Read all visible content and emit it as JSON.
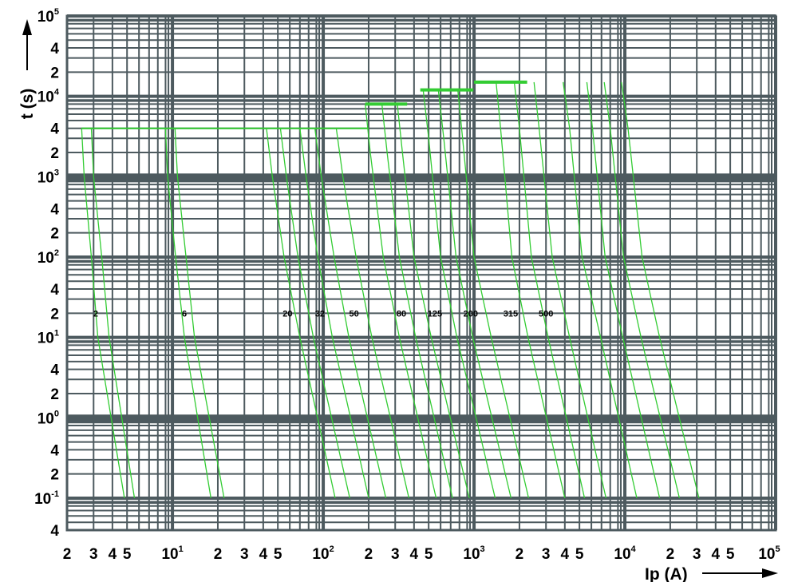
{
  "chart_data": {
    "type": "line",
    "title": "",
    "x_scale": "log",
    "y_scale": "log",
    "xlim": [
      2,
      100000
    ],
    "ylim": [
      0.04,
      100000
    ],
    "grid": true,
    "xlabel": "Ip (A)",
    "ylabel": "t (s)",
    "x_tick_labels": [
      {
        "value": 2,
        "base": "2",
        "sup": ""
      },
      {
        "value": 3,
        "base": "3",
        "sup": ""
      },
      {
        "value": 4,
        "base": "4",
        "sup": ""
      },
      {
        "value": 5,
        "base": "5",
        "sup": ""
      },
      {
        "value": 10,
        "base": "10",
        "sup": "1"
      },
      {
        "value": 20,
        "base": "2",
        "sup": ""
      },
      {
        "value": 30,
        "base": "3",
        "sup": ""
      },
      {
        "value": 40,
        "base": "4",
        "sup": ""
      },
      {
        "value": 50,
        "base": "5",
        "sup": ""
      },
      {
        "value": 100,
        "base": "10",
        "sup": "2"
      },
      {
        "value": 200,
        "base": "2",
        "sup": ""
      },
      {
        "value": 300,
        "base": "3",
        "sup": ""
      },
      {
        "value": 400,
        "base": "4",
        "sup": ""
      },
      {
        "value": 500,
        "base": "5",
        "sup": ""
      },
      {
        "value": 1000,
        "base": "10",
        "sup": "3"
      },
      {
        "value": 2000,
        "base": "2",
        "sup": ""
      },
      {
        "value": 3000,
        "base": "3",
        "sup": ""
      },
      {
        "value": 4000,
        "base": "4",
        "sup": ""
      },
      {
        "value": 5000,
        "base": "5",
        "sup": ""
      },
      {
        "value": 10000,
        "base": "10",
        "sup": "4"
      },
      {
        "value": 20000,
        "base": "2",
        "sup": ""
      },
      {
        "value": 30000,
        "base": "3",
        "sup": ""
      },
      {
        "value": 40000,
        "base": "4",
        "sup": ""
      },
      {
        "value": 50000,
        "base": "5",
        "sup": ""
      },
      {
        "value": 100000,
        "base": "10",
        "sup": "5"
      }
    ],
    "y_tick_labels": [
      {
        "value": 100000,
        "base": "10",
        "sup": "5"
      },
      {
        "value": 40000,
        "base": "4",
        "sup": ""
      },
      {
        "value": 20000,
        "base": "2",
        "sup": ""
      },
      {
        "value": 10000,
        "base": "10",
        "sup": "4"
      },
      {
        "value": 4000,
        "base": "4",
        "sup": ""
      },
      {
        "value": 2000,
        "base": "2",
        "sup": ""
      },
      {
        "value": 1000,
        "base": "10",
        "sup": "3"
      },
      {
        "value": 400,
        "base": "4",
        "sup": ""
      },
      {
        "value": 200,
        "base": "2",
        "sup": ""
      },
      {
        "value": 100,
        "base": "10",
        "sup": "2"
      },
      {
        "value": 40,
        "base": "4",
        "sup": ""
      },
      {
        "value": 20,
        "base": "2",
        "sup": ""
      },
      {
        "value": 10,
        "base": "10",
        "sup": "1"
      },
      {
        "value": 4,
        "base": "4",
        "sup": ""
      },
      {
        "value": 2,
        "base": "2",
        "sup": ""
      },
      {
        "value": 1,
        "base": "10",
        "sup": "0"
      },
      {
        "value": 0.4,
        "base": "4",
        "sup": ""
      },
      {
        "value": 0.2,
        "base": "2",
        "sup": ""
      },
      {
        "value": 0.1,
        "base": "10",
        "sup": "-1"
      },
      {
        "value": 0.04,
        "base": "4",
        "sup": ""
      }
    ],
    "series": [
      {
        "name": "2",
        "x": [
          2.5,
          2.6,
          2.9,
          3.2,
          4.8
        ],
        "y": [
          4000,
          1000,
          100,
          10,
          0.1
        ]
      },
      {
        "name": "",
        "x": [
          2.9,
          3.0,
          3.4,
          3.8,
          5.6
        ],
        "y": [
          4000,
          1000,
          100,
          10,
          0.1
        ]
      },
      {
        "name": "6",
        "x": [
          9.0,
          9.3,
          10.5,
          12.0,
          18.0
        ],
        "y": [
          4000,
          1000,
          100,
          10,
          0.1
        ]
      },
      {
        "name": "",
        "x": [
          10.4,
          10.8,
          12.3,
          14.0,
          22.0
        ],
        "y": [
          4000,
          1000,
          100,
          10,
          0.1
        ]
      },
      {
        "name": "20",
        "x": [
          42,
          46,
          55,
          70,
          120
        ],
        "y": [
          4000,
          1000,
          100,
          10,
          0.1
        ]
      },
      {
        "name": "",
        "x": [
          52,
          57,
          68,
          86,
          150
        ],
        "y": [
          4000,
          1000,
          100,
          10,
          0.1
        ]
      },
      {
        "name": "32",
        "x": [
          70,
          77,
          92,
          115,
          200
        ],
        "y": [
          4000,
          1000,
          100,
          10,
          0.1
        ]
      },
      {
        "name": "",
        "x": [
          88,
          97,
          118,
          148,
          260
        ],
        "y": [
          4000,
          1000,
          100,
          10,
          0.1
        ]
      },
      {
        "name": "50",
        "x": [
          122,
          135,
          165,
          210,
          370
        ],
        "y": [
          4000,
          1000,
          100,
          10,
          0.1
        ]
      },
      {
        "name": "",
        "x": [
          190,
          205,
          250,
          320,
          560
        ],
        "y": [
          8000,
          2000,
          100,
          10,
          0.1
        ]
      },
      {
        "name": "80",
        "x": [
          245,
          265,
          320,
          410,
          720
        ],
        "y": [
          8000,
          2000,
          100,
          10,
          0.1
        ]
      },
      {
        "name": "",
        "x": [
          310,
          335,
          400,
          520,
          930
        ],
        "y": [
          8000,
          2000,
          100,
          10,
          0.1
        ]
      },
      {
        "name": "125",
        "x": [
          460,
          500,
          600,
          770,
          1380
        ],
        "y": [
          12000,
          3000,
          100,
          10,
          0.1
        ]
      },
      {
        "name": "",
        "x": [
          580,
          630,
          760,
          980,
          1760
        ],
        "y": [
          12000,
          3000,
          100,
          10,
          0.1
        ]
      },
      {
        "name": "200",
        "x": [
          780,
          840,
          1000,
          1300,
          2300
        ],
        "y": [
          12000,
          3000,
          100,
          10,
          0.1
        ]
      },
      {
        "name": "",
        "x": [
          1400,
          1500,
          1780,
          2280,
          4000
        ],
        "y": [
          15000,
          4000,
          100,
          10,
          0.1
        ]
      },
      {
        "name": "315",
        "x": [
          1850,
          2000,
          2400,
          3100,
          5400
        ],
        "y": [
          15000,
          4000,
          100,
          10,
          0.1
        ]
      },
      {
        "name": "500",
        "x": [
          2500,
          2700,
          3300,
          4300,
          7500
        ],
        "y": [
          15000,
          4000,
          100,
          10,
          0.1
        ]
      },
      {
        "name": "",
        "x": [
          3900,
          4300,
          5200,
          6900,
          12000
        ],
        "y": [
          15000,
          4000,
          100,
          10,
          0.1
        ]
      },
      {
        "name": "",
        "x": [
          5600,
          6100,
          7400,
          9700,
          17000
        ],
        "y": [
          15000,
          4000,
          100,
          10,
          0.1
        ]
      },
      {
        "name": "",
        "x": [
          7300,
          8000,
          9800,
          12800,
          23000
        ],
        "y": [
          15000,
          4000,
          100,
          10,
          0.1
        ]
      },
      {
        "name": "",
        "x": [
          9500,
          10500,
          13000,
          17000,
          31000
        ],
        "y": [
          15000,
          4000,
          100,
          10,
          0.1
        ]
      }
    ],
    "plateaus": [
      {
        "x": [
          2.5,
          200
        ],
        "y": 4000
      },
      {
        "x": [
          190,
          360
        ],
        "y": 8000
      },
      {
        "x": [
          440,
          990
        ],
        "y": 12000
      },
      {
        "x": [
          1000,
          2250
        ],
        "y": 15000
      }
    ],
    "curve_labels": [
      {
        "text": "2",
        "x": 3.1,
        "y": 20
      },
      {
        "text": "6",
        "x": 12,
        "y": 20
      },
      {
        "text": "20",
        "x": 58,
        "y": 20
      },
      {
        "text": "32",
        "x": 95,
        "y": 20
      },
      {
        "text": "50",
        "x": 160,
        "y": 20
      },
      {
        "text": "80",
        "x": 330,
        "y": 20
      },
      {
        "text": "125",
        "x": 550,
        "y": 20
      },
      {
        "text": "200",
        "x": 950,
        "y": 20
      },
      {
        "text": "315",
        "x": 1750,
        "y": 20
      },
      {
        "text": "500",
        "x": 3000,
        "y": 20
      }
    ],
    "colors": {
      "grid": "#4d5a5f",
      "curve": "#33cc33",
      "text": "#000000"
    }
  }
}
